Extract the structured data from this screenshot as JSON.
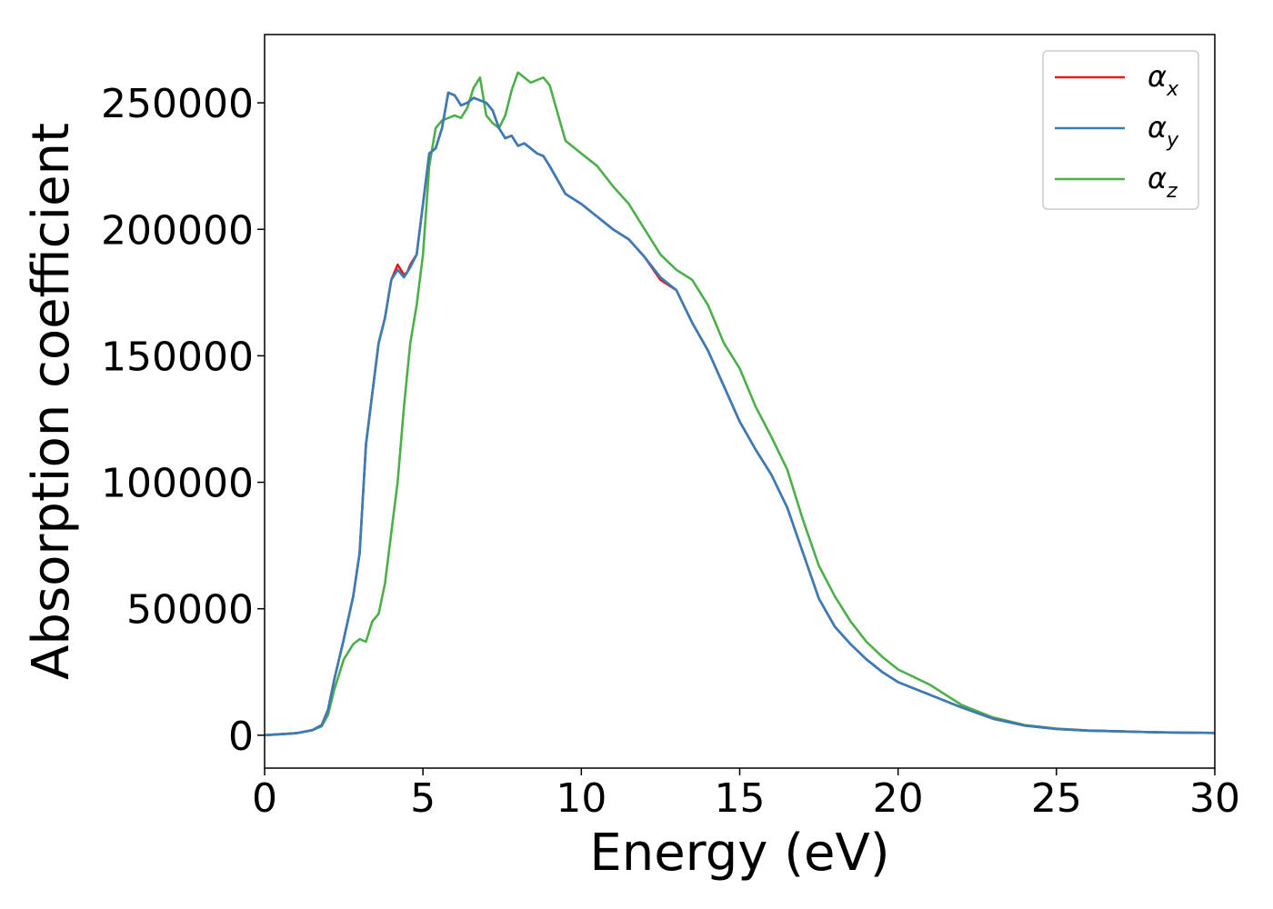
{
  "chart_data": {
    "type": "line",
    "title": "",
    "xlabel": "Energy (eV)",
    "ylabel": "Absorption coefficient",
    "xlim": [
      0,
      30
    ],
    "ylim": [
      -13000,
      277000
    ],
    "xticks": [
      0,
      5,
      10,
      15,
      20,
      25,
      30
    ],
    "yticks": [
      0,
      50000,
      100000,
      150000,
      200000,
      250000
    ],
    "grid": false,
    "legend_position": "top-right",
    "series": [
      {
        "name": "α",
        "subscript": "x",
        "color": "#e41a1c",
        "x": [
          0,
          1,
          1.5,
          1.8,
          2.0,
          2.2,
          2.5,
          2.8,
          3.0,
          3.2,
          3.4,
          3.6,
          3.8,
          4.0,
          4.2,
          4.4,
          4.5,
          4.6,
          4.8,
          5.0,
          5.2,
          5.4,
          5.6,
          5.8,
          6.0,
          6.2,
          6.4,
          6.6,
          6.8,
          7.0,
          7.2,
          7.4,
          7.6,
          7.8,
          8.0,
          8.2,
          8.4,
          8.6,
          8.8,
          9.0,
          9.5,
          10.0,
          10.5,
          11.0,
          11.5,
          12.0,
          12.5,
          13.0,
          13.5,
          14.0,
          14.5,
          15.0,
          15.5,
          16.0,
          16.5,
          17.0,
          17.5,
          18.0,
          18.5,
          19.0,
          19.5,
          20.0,
          21.0,
          22.0,
          23.0,
          24.0,
          25.0,
          26.0,
          27.0,
          28.0,
          29.0,
          30.0
        ],
        "values": [
          0,
          800,
          2000,
          4000,
          10000,
          22000,
          38000,
          55000,
          72000,
          115000,
          135000,
          155000,
          165000,
          180000,
          186000,
          182000,
          183000,
          186000,
          190000,
          210000,
          230000,
          232000,
          240000,
          254000,
          253000,
          249000,
          250000,
          252000,
          251000,
          250000,
          247000,
          240000,
          236000,
          237000,
          233000,
          234000,
          232000,
          230000,
          229000,
          225000,
          214000,
          210000,
          205000,
          200000,
          196000,
          189000,
          180000,
          176000,
          163000,
          152000,
          138000,
          124000,
          113000,
          103000,
          90000,
          72000,
          54000,
          43000,
          36000,
          30000,
          25000,
          21000,
          16000,
          11000,
          6500,
          3800,
          2500,
          1800,
          1500,
          1200,
          1000,
          900
        ]
      },
      {
        "name": "α",
        "subscript": "y",
        "color": "#377eb8",
        "x": [
          0,
          1,
          1.5,
          1.8,
          2.0,
          2.2,
          2.5,
          2.8,
          3.0,
          3.2,
          3.4,
          3.6,
          3.8,
          4.0,
          4.2,
          4.4,
          4.5,
          4.6,
          4.8,
          5.0,
          5.2,
          5.4,
          5.6,
          5.8,
          6.0,
          6.2,
          6.4,
          6.6,
          6.8,
          7.0,
          7.2,
          7.4,
          7.6,
          7.8,
          8.0,
          8.2,
          8.4,
          8.6,
          8.8,
          9.0,
          9.5,
          10.0,
          10.5,
          11.0,
          11.5,
          12.0,
          12.5,
          13.0,
          13.5,
          14.0,
          14.5,
          15.0,
          15.5,
          16.0,
          16.5,
          17.0,
          17.5,
          18.0,
          18.5,
          19.0,
          19.5,
          20.0,
          21.0,
          22.0,
          23.0,
          24.0,
          25.0,
          26.0,
          27.0,
          28.0,
          29.0,
          30.0
        ],
        "values": [
          0,
          800,
          2000,
          4000,
          10000,
          22000,
          38000,
          55000,
          72000,
          115000,
          135000,
          155000,
          165000,
          180000,
          184000,
          181000,
          183000,
          185000,
          190000,
          210000,
          230000,
          232000,
          240000,
          254000,
          253000,
          249000,
          250000,
          252000,
          251000,
          250000,
          247000,
          240000,
          236000,
          237000,
          233000,
          234000,
          232000,
          230000,
          229000,
          225000,
          214000,
          210000,
          205000,
          200000,
          196000,
          189000,
          181000,
          176000,
          163000,
          152000,
          138000,
          124000,
          113000,
          103000,
          90000,
          72000,
          54000,
          43000,
          36000,
          30000,
          25000,
          21000,
          16000,
          11000,
          6500,
          3800,
          2500,
          1800,
          1500,
          1200,
          1000,
          900
        ]
      },
      {
        "name": "α",
        "subscript": "z",
        "color": "#4daf4a",
        "x": [
          0,
          1,
          1.5,
          1.8,
          2.0,
          2.2,
          2.5,
          2.8,
          3.0,
          3.2,
          3.4,
          3.6,
          3.8,
          4.0,
          4.2,
          4.4,
          4.6,
          4.8,
          5.0,
          5.2,
          5.4,
          5.6,
          5.8,
          6.0,
          6.2,
          6.4,
          6.6,
          6.8,
          7.0,
          7.2,
          7.4,
          7.6,
          7.8,
          8.0,
          8.2,
          8.4,
          8.6,
          8.8,
          9.0,
          9.5,
          10.0,
          10.5,
          11.0,
          11.5,
          12.0,
          12.5,
          13.0,
          13.5,
          14.0,
          14.5,
          15.0,
          15.5,
          16.0,
          16.5,
          17.0,
          17.5,
          18.0,
          18.5,
          19.0,
          19.5,
          20.0,
          21.0,
          22.0,
          23.0,
          24.0,
          25.0,
          26.0,
          27.0,
          28.0,
          29.0,
          30.0
        ],
        "values": [
          0,
          800,
          2000,
          3500,
          8000,
          18000,
          30000,
          36000,
          38000,
          37000,
          45000,
          48000,
          60000,
          80000,
          100000,
          130000,
          155000,
          170000,
          190000,
          225000,
          240000,
          243000,
          244000,
          245000,
          244000,
          248000,
          256000,
          260000,
          245000,
          242000,
          240000,
          245000,
          255000,
          262000,
          260000,
          258000,
          259000,
          260000,
          257000,
          235000,
          230000,
          225000,
          217000,
          210000,
          200000,
          190000,
          184000,
          180000,
          170000,
          155000,
          145000,
          130000,
          118000,
          105000,
          85000,
          67000,
          55000,
          45000,
          37000,
          31000,
          26000,
          20000,
          12000,
          7000,
          4000,
          2600,
          1900,
          1500,
          1200,
          1000,
          900
        ]
      }
    ]
  }
}
